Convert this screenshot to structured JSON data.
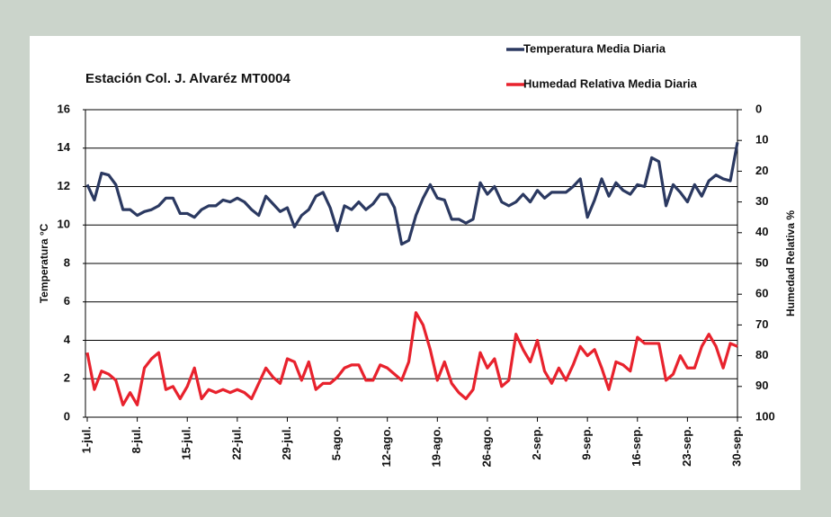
{
  "chart_data": {
    "type": "line",
    "title": "Estación Col. J. Alvaréz  MT0004",
    "ylabel": "Temperatura °C",
    "y2label": "Humedad Relativa %",
    "categories": [
      "1-jul.",
      null,
      null,
      null,
      null,
      null,
      null,
      "8-jul.",
      null,
      null,
      null,
      null,
      null,
      null,
      "15-jul.",
      null,
      null,
      null,
      null,
      null,
      null,
      "22-jul.",
      null,
      null,
      null,
      null,
      null,
      null,
      "29-jul.",
      null,
      null,
      null,
      null,
      null,
      null,
      "5-ago.",
      null,
      null,
      null,
      null,
      null,
      null,
      "12-ago.",
      null,
      null,
      null,
      null,
      null,
      null,
      "19-ago.",
      null,
      null,
      null,
      null,
      null,
      null,
      "26-ago.",
      null,
      null,
      null,
      null,
      null,
      null,
      "2-sep.",
      null,
      null,
      null,
      null,
      null,
      null,
      "9-sep.",
      null,
      null,
      null,
      null,
      null,
      null,
      "16-sep.",
      null,
      null,
      null,
      null,
      null,
      null,
      "23-sep.",
      null,
      null,
      null,
      null,
      null,
      null,
      "30-sep."
    ],
    "series": [
      {
        "name": "Temperatura Media Diaria",
        "color": "#2b3961",
        "values": [
          12.1,
          11.3,
          12.7,
          12.6,
          12.1,
          10.8,
          10.8,
          10.5,
          10.7,
          10.8,
          11.0,
          11.4,
          11.4,
          10.6,
          10.6,
          10.4,
          10.8,
          11.0,
          11.0,
          11.3,
          11.2,
          11.4,
          11.2,
          10.8,
          10.5,
          11.5,
          11.1,
          10.7,
          10.9,
          9.9,
          10.5,
          10.8,
          11.5,
          11.7,
          10.9,
          9.7,
          11.0,
          10.8,
          11.2,
          10.8,
          11.1,
          11.6,
          11.6,
          10.9,
          9.0,
          9.2,
          10.5,
          11.4,
          12.1,
          11.4,
          11.3,
          10.3,
          10.3,
          10.1,
          10.3,
          12.2,
          11.6,
          12.0,
          11.2,
          11.0,
          11.2,
          11.6,
          11.2,
          11.8,
          11.4,
          11.7,
          11.7,
          11.7,
          12.0,
          12.4,
          10.4,
          11.3,
          12.4,
          11.5,
          12.2,
          11.8,
          11.6,
          12.1,
          12.0,
          13.5,
          13.3,
          11.0,
          12.1,
          11.7,
          11.2,
          12.1,
          11.5,
          12.3,
          12.6,
          12.4,
          12.3,
          14.3
        ]
      },
      {
        "name": "Humedad Relativa Media Diaria",
        "color": "#e8222d",
        "axis": "y2",
        "values": [
          79,
          91,
          85,
          86,
          88,
          96,
          92,
          96,
          84,
          81,
          79,
          91,
          90,
          94,
          90,
          84,
          94,
          91,
          92,
          91,
          92,
          91,
          92,
          94,
          89,
          84,
          87,
          89,
          81,
          82,
          88,
          82,
          91,
          89,
          89,
          87,
          84,
          83,
          83,
          88,
          88,
          83,
          84,
          86,
          88,
          82,
          66,
          70,
          78,
          88,
          82,
          89,
          92,
          94,
          91,
          79,
          84,
          81,
          90,
          88,
          73,
          78,
          82,
          75,
          85,
          89,
          84,
          88,
          83,
          77,
          80,
          78,
          84,
          91,
          82,
          83,
          85,
          74,
          76,
          76,
          76,
          88,
          86,
          80,
          84,
          84,
          77,
          73,
          77,
          84,
          76,
          77
        ]
      }
    ],
    "ylim": [
      0,
      16
    ],
    "yticks": [
      0,
      2,
      4,
      6,
      8,
      10,
      12,
      14,
      16
    ],
    "y2lim": [
      0,
      100
    ],
    "y2ticks": [
      0,
      10,
      20,
      30,
      40,
      50,
      60,
      70,
      80,
      90,
      100
    ],
    "y2_inverted": true,
    "grid": true
  }
}
